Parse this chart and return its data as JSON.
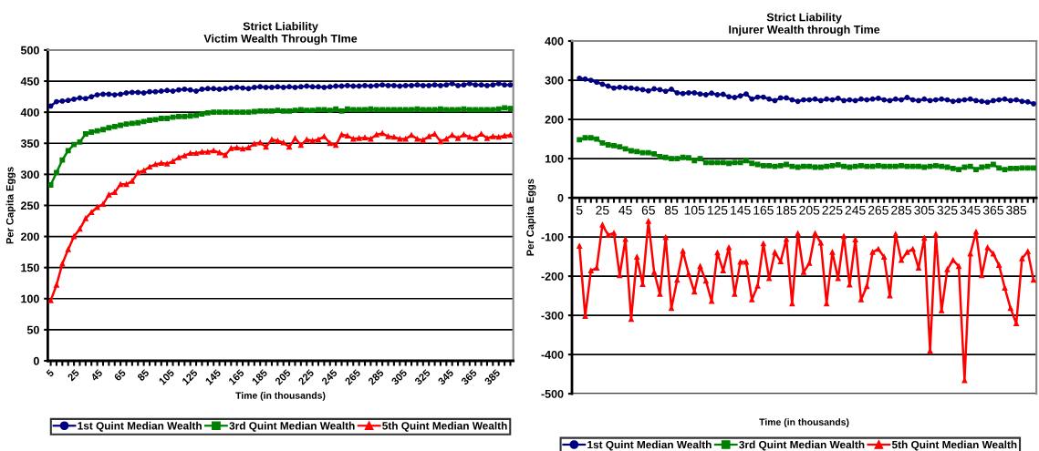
{
  "chart_data": [
    {
      "type": "line",
      "title": "Strict Liability\nVictim Wealth Through TIme",
      "xlabel": "Time (in thousands)",
      "ylabel": "Per Capita Eggs",
      "categories": [
        "5",
        null,
        null,
        null,
        "25",
        null,
        null,
        null,
        "45",
        null,
        null,
        null,
        "65",
        null,
        null,
        null,
        "85",
        null,
        null,
        null,
        "105",
        null,
        null,
        null,
        "125",
        null,
        null,
        null,
        "145",
        null,
        null,
        null,
        "165",
        null,
        null,
        null,
        "185",
        null,
        null,
        null,
        "205",
        null,
        null,
        null,
        "225",
        null,
        null,
        null,
        "245",
        null,
        null,
        null,
        "265",
        null,
        null,
        null,
        "285",
        null,
        null,
        null,
        "305",
        null,
        null,
        null,
        "325",
        null,
        null,
        null,
        "345",
        null,
        null,
        null,
        "365",
        null,
        null,
        null,
        "385",
        null,
        null,
        null
      ],
      "ylim": [
        0,
        500
      ],
      "yticks": [
        0,
        50,
        100,
        150,
        200,
        250,
        300,
        350,
        400,
        450,
        500
      ],
      "grid": "y",
      "legend": "bottom",
      "line_style": "solid",
      "series": [
        {
          "name": "1st Quint Median Wealth",
          "color": "#000080",
          "marker": "circle",
          "values": [
            410,
            417,
            418,
            419,
            421,
            423,
            422,
            425,
            428,
            429,
            429,
            428,
            429,
            431,
            432,
            432,
            431,
            433,
            433,
            434,
            435,
            434,
            436,
            437,
            436,
            434,
            437,
            438,
            438,
            437,
            438,
            439,
            440,
            439,
            438,
            440,
            441,
            440,
            440,
            441,
            440,
            441,
            440,
            441,
            442,
            441,
            441,
            440,
            441,
            442,
            442,
            443,
            442,
            442,
            443,
            442,
            443,
            444,
            443,
            443,
            442,
            443,
            443,
            444,
            443,
            443,
            444,
            443,
            444,
            446,
            443,
            444,
            446,
            444,
            444,
            443,
            444,
            446,
            444,
            444
          ]
        },
        {
          "name": "3rd Quint Median Wealth",
          "color": "#008000",
          "marker": "square",
          "values": [
            283,
            303,
            323,
            338,
            348,
            352,
            365,
            368,
            370,
            372,
            375,
            377,
            379,
            381,
            382,
            383,
            385,
            387,
            388,
            390,
            390,
            392,
            393,
            393,
            394,
            395,
            397,
            399,
            400,
            400,
            400,
            400,
            400,
            400,
            400,
            401,
            402,
            402,
            402,
            403,
            402,
            402,
            403,
            404,
            403,
            403,
            404,
            404,
            403,
            405,
            402,
            405,
            404,
            404,
            404,
            405,
            404,
            404,
            404,
            404,
            404,
            404,
            404,
            405,
            404,
            404,
            404,
            405,
            404,
            404,
            404,
            405,
            404,
            404,
            404,
            404,
            404,
            405,
            407,
            406
          ]
        },
        {
          "name": "5th Quint Median Wealth",
          "color": "#ff0000",
          "marker": "triangle",
          "values": [
            97,
            122,
            156,
            179,
            200,
            212,
            229,
            239,
            247,
            252,
            267,
            271,
            284,
            284,
            289,
            303,
            306,
            312,
            316,
            318,
            317,
            321,
            327,
            330,
            334,
            334,
            336,
            336,
            338,
            335,
            331,
            342,
            343,
            341,
            343,
            349,
            351,
            344,
            356,
            354,
            351,
            344,
            358,
            347,
            356,
            354,
            356,
            361,
            350,
            347,
            364,
            362,
            357,
            358,
            359,
            357,
            364,
            366,
            361,
            360,
            357,
            357,
            363,
            357,
            355,
            361,
            365,
            353,
            357,
            363,
            358,
            364,
            360,
            358,
            365,
            358,
            361,
            360,
            362,
            363
          ]
        }
      ]
    },
    {
      "type": "line",
      "title": "Strict Liability\nInjurer Wealth through Time",
      "xlabel": "Time (in thousands)",
      "ylabel": "Per Capita Eggs",
      "categories": [
        "5",
        null,
        null,
        null,
        "25",
        null,
        null,
        null,
        "45",
        null,
        null,
        null,
        "65",
        null,
        null,
        null,
        "85",
        null,
        null,
        null,
        "105",
        null,
        null,
        null,
        "125",
        null,
        null,
        null,
        "145",
        null,
        null,
        null,
        "165",
        null,
        null,
        null,
        "185",
        null,
        null,
        null,
        "205",
        null,
        null,
        null,
        "225",
        null,
        null,
        null,
        "245",
        null,
        null,
        null,
        "265",
        null,
        null,
        null,
        "285",
        null,
        null,
        null,
        "305",
        null,
        null,
        null,
        "325",
        null,
        null,
        null,
        "345",
        null,
        null,
        null,
        "365",
        null,
        null,
        null,
        "385",
        null,
        null,
        null
      ],
      "ylim": [
        -500,
        400
      ],
      "yticks": [
        -500,
        -400,
        -300,
        -200,
        -100,
        0,
        100,
        200,
        300,
        400
      ],
      "grid": "y",
      "legend": "bottom",
      "line_style": "solid",
      "series": [
        {
          "name": "1st Quint Median Wealth",
          "color": "#000080",
          "marker": "circle",
          "values": [
            305,
            303,
            300,
            295,
            290,
            285,
            280,
            282,
            281,
            280,
            278,
            276,
            273,
            278,
            276,
            272,
            277,
            268,
            266,
            268,
            268,
            265,
            263,
            267,
            263,
            264,
            258,
            256,
            260,
            265,
            252,
            257,
            257,
            252,
            248,
            255,
            255,
            250,
            246,
            250,
            250,
            252,
            248,
            252,
            250,
            254,
            248,
            250,
            248,
            252,
            250,
            252,
            254,
            250,
            248,
            252,
            250,
            256,
            250,
            248,
            252,
            248,
            250,
            252,
            250,
            246,
            248,
            250,
            252,
            248,
            246,
            244,
            248,
            250,
            252,
            248,
            250,
            246,
            245,
            240
          ]
        },
        {
          "name": "3rd Quint Median Wealth",
          "color": "#008000",
          "marker": "square",
          "values": [
            148,
            153,
            153,
            150,
            140,
            135,
            133,
            130,
            125,
            120,
            118,
            115,
            115,
            112,
            105,
            103,
            100,
            100,
            103,
            102,
            95,
            100,
            90,
            90,
            90,
            90,
            88,
            90,
            90,
            95,
            88,
            85,
            82,
            82,
            80,
            82,
            85,
            80,
            78,
            80,
            80,
            78,
            78,
            80,
            82,
            84,
            80,
            78,
            80,
            82,
            80,
            80,
            82,
            80,
            80,
            80,
            82,
            80,
            80,
            80,
            78,
            80,
            82,
            80,
            78,
            75,
            72,
            78,
            80,
            72,
            78,
            80,
            85,
            76,
            72,
            75,
            75,
            76,
            76,
            76
          ]
        },
        {
          "name": "5th Quint Median Wealth",
          "color": "#ff0000",
          "marker": "triangle",
          "values": [
            -123,
            -302,
            -186,
            -179,
            -69,
            -95,
            -90,
            -198,
            -106,
            -310,
            -151,
            -221,
            -60,
            -190,
            -246,
            -101,
            -282,
            -210,
            -136,
            -194,
            -240,
            -175,
            -212,
            -264,
            -140,
            -186,
            -127,
            -246,
            -164,
            -164,
            -260,
            -225,
            -117,
            -206,
            -139,
            -163,
            -106,
            -270,
            -91,
            -190,
            -167,
            -91,
            -115,
            -270,
            -139,
            -206,
            -98,
            -222,
            -107,
            -260,
            -226,
            -139,
            -131,
            -151,
            -250,
            -93,
            -159,
            -139,
            -131,
            -179,
            -103,
            -391,
            -93,
            -288,
            -183,
            -159,
            -175,
            -466,
            -143,
            -87,
            -198,
            -127,
            -143,
            -172,
            -230,
            -282,
            -321,
            -155,
            -137,
            -210
          ]
        }
      ]
    }
  ]
}
